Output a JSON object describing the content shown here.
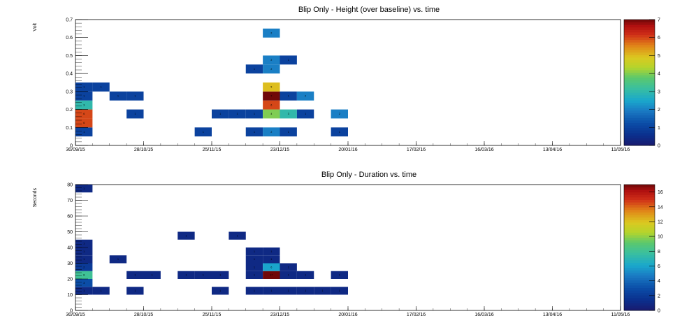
{
  "chart_data": [
    {
      "type": "heatmap",
      "title": "Blip Only - Height (over baseline) vs. time",
      "ylabel": "Volt",
      "xlabel": "",
      "x_tick_labels": [
        "30/09/15",
        "28/10/15",
        "25/11/15",
        "23/12/15",
        "20/01/16",
        "17/02/16",
        "16/03/16",
        "13/04/16",
        "11/05/16"
      ],
      "y_tick_labels": [
        "0",
        "0.1",
        "0.2",
        "0.3",
        "0.4",
        "0.5",
        "0.6",
        "0.7"
      ],
      "ylim": [
        0,
        0.7
      ],
      "x_bin_width_days": 7,
      "y_bin_width": 0.05,
      "z_range": [
        0,
        7
      ],
      "z_tick_labels": [
        "0",
        "1",
        "2",
        "3",
        "4",
        "5",
        "6",
        "7"
      ],
      "cells": [
        {
          "week": 0,
          "bin": 1,
          "count": 1
        },
        {
          "week": 0,
          "bin": 2,
          "count": 6
        },
        {
          "week": 0,
          "bin": 3,
          "count": 6
        },
        {
          "week": 0,
          "bin": 4,
          "count": 3
        },
        {
          "week": 0,
          "bin": 5,
          "count": 1
        },
        {
          "week": 0,
          "bin": 6,
          "count": 1
        },
        {
          "week": 1,
          "bin": 6,
          "count": 1
        },
        {
          "week": 2,
          "bin": 5,
          "count": 1
        },
        {
          "week": 3,
          "bin": 5,
          "count": 1
        },
        {
          "week": 3,
          "bin": 3,
          "count": 1
        },
        {
          "week": 7,
          "bin": 1,
          "count": 1
        },
        {
          "week": 8,
          "bin": 3,
          "count": 1
        },
        {
          "week": 9,
          "bin": 3,
          "count": 1
        },
        {
          "week": 10,
          "bin": 3,
          "count": 1
        },
        {
          "week": 10,
          "bin": 1,
          "count": 1
        },
        {
          "week": 10,
          "bin": 8,
          "count": 1
        },
        {
          "week": 11,
          "bin": 1,
          "count": 2
        },
        {
          "week": 11,
          "bin": 3,
          "count": 4
        },
        {
          "week": 11,
          "bin": 4,
          "count": 6
        },
        {
          "week": 11,
          "bin": 5,
          "count": 7
        },
        {
          "week": 11,
          "bin": 6,
          "count": 5
        },
        {
          "week": 11,
          "bin": 8,
          "count": 2
        },
        {
          "week": 11,
          "bin": 9,
          "count": 2
        },
        {
          "week": 11,
          "bin": 12,
          "count": 2
        },
        {
          "week": 12,
          "bin": 1,
          "count": 1
        },
        {
          "week": 12,
          "bin": 3,
          "count": 3
        },
        {
          "week": 12,
          "bin": 5,
          "count": 1
        },
        {
          "week": 12,
          "bin": 9,
          "count": 1
        },
        {
          "week": 13,
          "bin": 3,
          "count": 1
        },
        {
          "week": 13,
          "bin": 5,
          "count": 2
        },
        {
          "week": 15,
          "bin": 1,
          "count": 1
        },
        {
          "week": 15,
          "bin": 3,
          "count": 2
        }
      ]
    },
    {
      "type": "heatmap",
      "title": "Blip Only - Duration vs. time",
      "ylabel": "Seconds",
      "xlabel": "",
      "x_tick_labels": [
        "30/09/15",
        "28/10/15",
        "25/11/15",
        "23/12/15",
        "20/01/16",
        "17/02/16",
        "16/03/16",
        "13/04/16",
        "11/05/16"
      ],
      "y_tick_labels": [
        "0",
        "10",
        "20",
        "30",
        "40",
        "50",
        "60",
        "70",
        "80"
      ],
      "ylim": [
        0,
        80
      ],
      "x_bin_width_days": 7,
      "y_bin_width": 5,
      "z_range": [
        0,
        17
      ],
      "z_tick_labels": [
        "0",
        "2",
        "4",
        "6",
        "8",
        "10",
        "12",
        "14",
        "16"
      ],
      "cells": [
        {
          "week": 0,
          "bin": 2,
          "count": 1
        },
        {
          "week": 0,
          "bin": 3,
          "count": 3
        },
        {
          "week": 0,
          "bin": 4,
          "count": 8
        },
        {
          "week": 0,
          "bin": 5,
          "count": 2
        },
        {
          "week": 0,
          "bin": 6,
          "count": 1
        },
        {
          "week": 0,
          "bin": 7,
          "count": 1
        },
        {
          "week": 0,
          "bin": 8,
          "count": 1
        },
        {
          "week": 0,
          "bin": 15,
          "count": 1
        },
        {
          "week": 1,
          "bin": 2,
          "count": 1
        },
        {
          "week": 2,
          "bin": 6,
          "count": 1
        },
        {
          "week": 3,
          "bin": 2,
          "count": 1
        },
        {
          "week": 3,
          "bin": 4,
          "count": 1
        },
        {
          "week": 4,
          "bin": 4,
          "count": 1
        },
        {
          "week": 6,
          "bin": 4,
          "count": 1
        },
        {
          "week": 6,
          "bin": 9,
          "count": 1
        },
        {
          "week": 7,
          "bin": 4,
          "count": 1
        },
        {
          "week": 8,
          "bin": 2,
          "count": 1
        },
        {
          "week": 8,
          "bin": 4,
          "count": 1
        },
        {
          "week": 9,
          "bin": 9,
          "count": 1
        },
        {
          "week": 10,
          "bin": 2,
          "count": 1
        },
        {
          "week": 10,
          "bin": 4,
          "count": 1
        },
        {
          "week": 10,
          "bin": 5,
          "count": 1
        },
        {
          "week": 10,
          "bin": 6,
          "count": 1
        },
        {
          "week": 10,
          "bin": 7,
          "count": 1
        },
        {
          "week": 11,
          "bin": 2,
          "count": 1
        },
        {
          "week": 11,
          "bin": 4,
          "count": 17
        },
        {
          "week": 11,
          "bin": 5,
          "count": 6
        },
        {
          "week": 11,
          "bin": 6,
          "count": 1
        },
        {
          "week": 11,
          "bin": 7,
          "count": 1
        },
        {
          "week": 12,
          "bin": 2,
          "count": 1
        },
        {
          "week": 12,
          "bin": 4,
          "count": 1
        },
        {
          "week": 12,
          "bin": 5,
          "count": 1
        },
        {
          "week": 13,
          "bin": 2,
          "count": 1
        },
        {
          "week": 13,
          "bin": 4,
          "count": 1
        },
        {
          "week": 14,
          "bin": 2,
          "count": 1
        },
        {
          "week": 15,
          "bin": 2,
          "count": 1
        },
        {
          "week": 15,
          "bin": 4,
          "count": 1
        }
      ]
    }
  ]
}
